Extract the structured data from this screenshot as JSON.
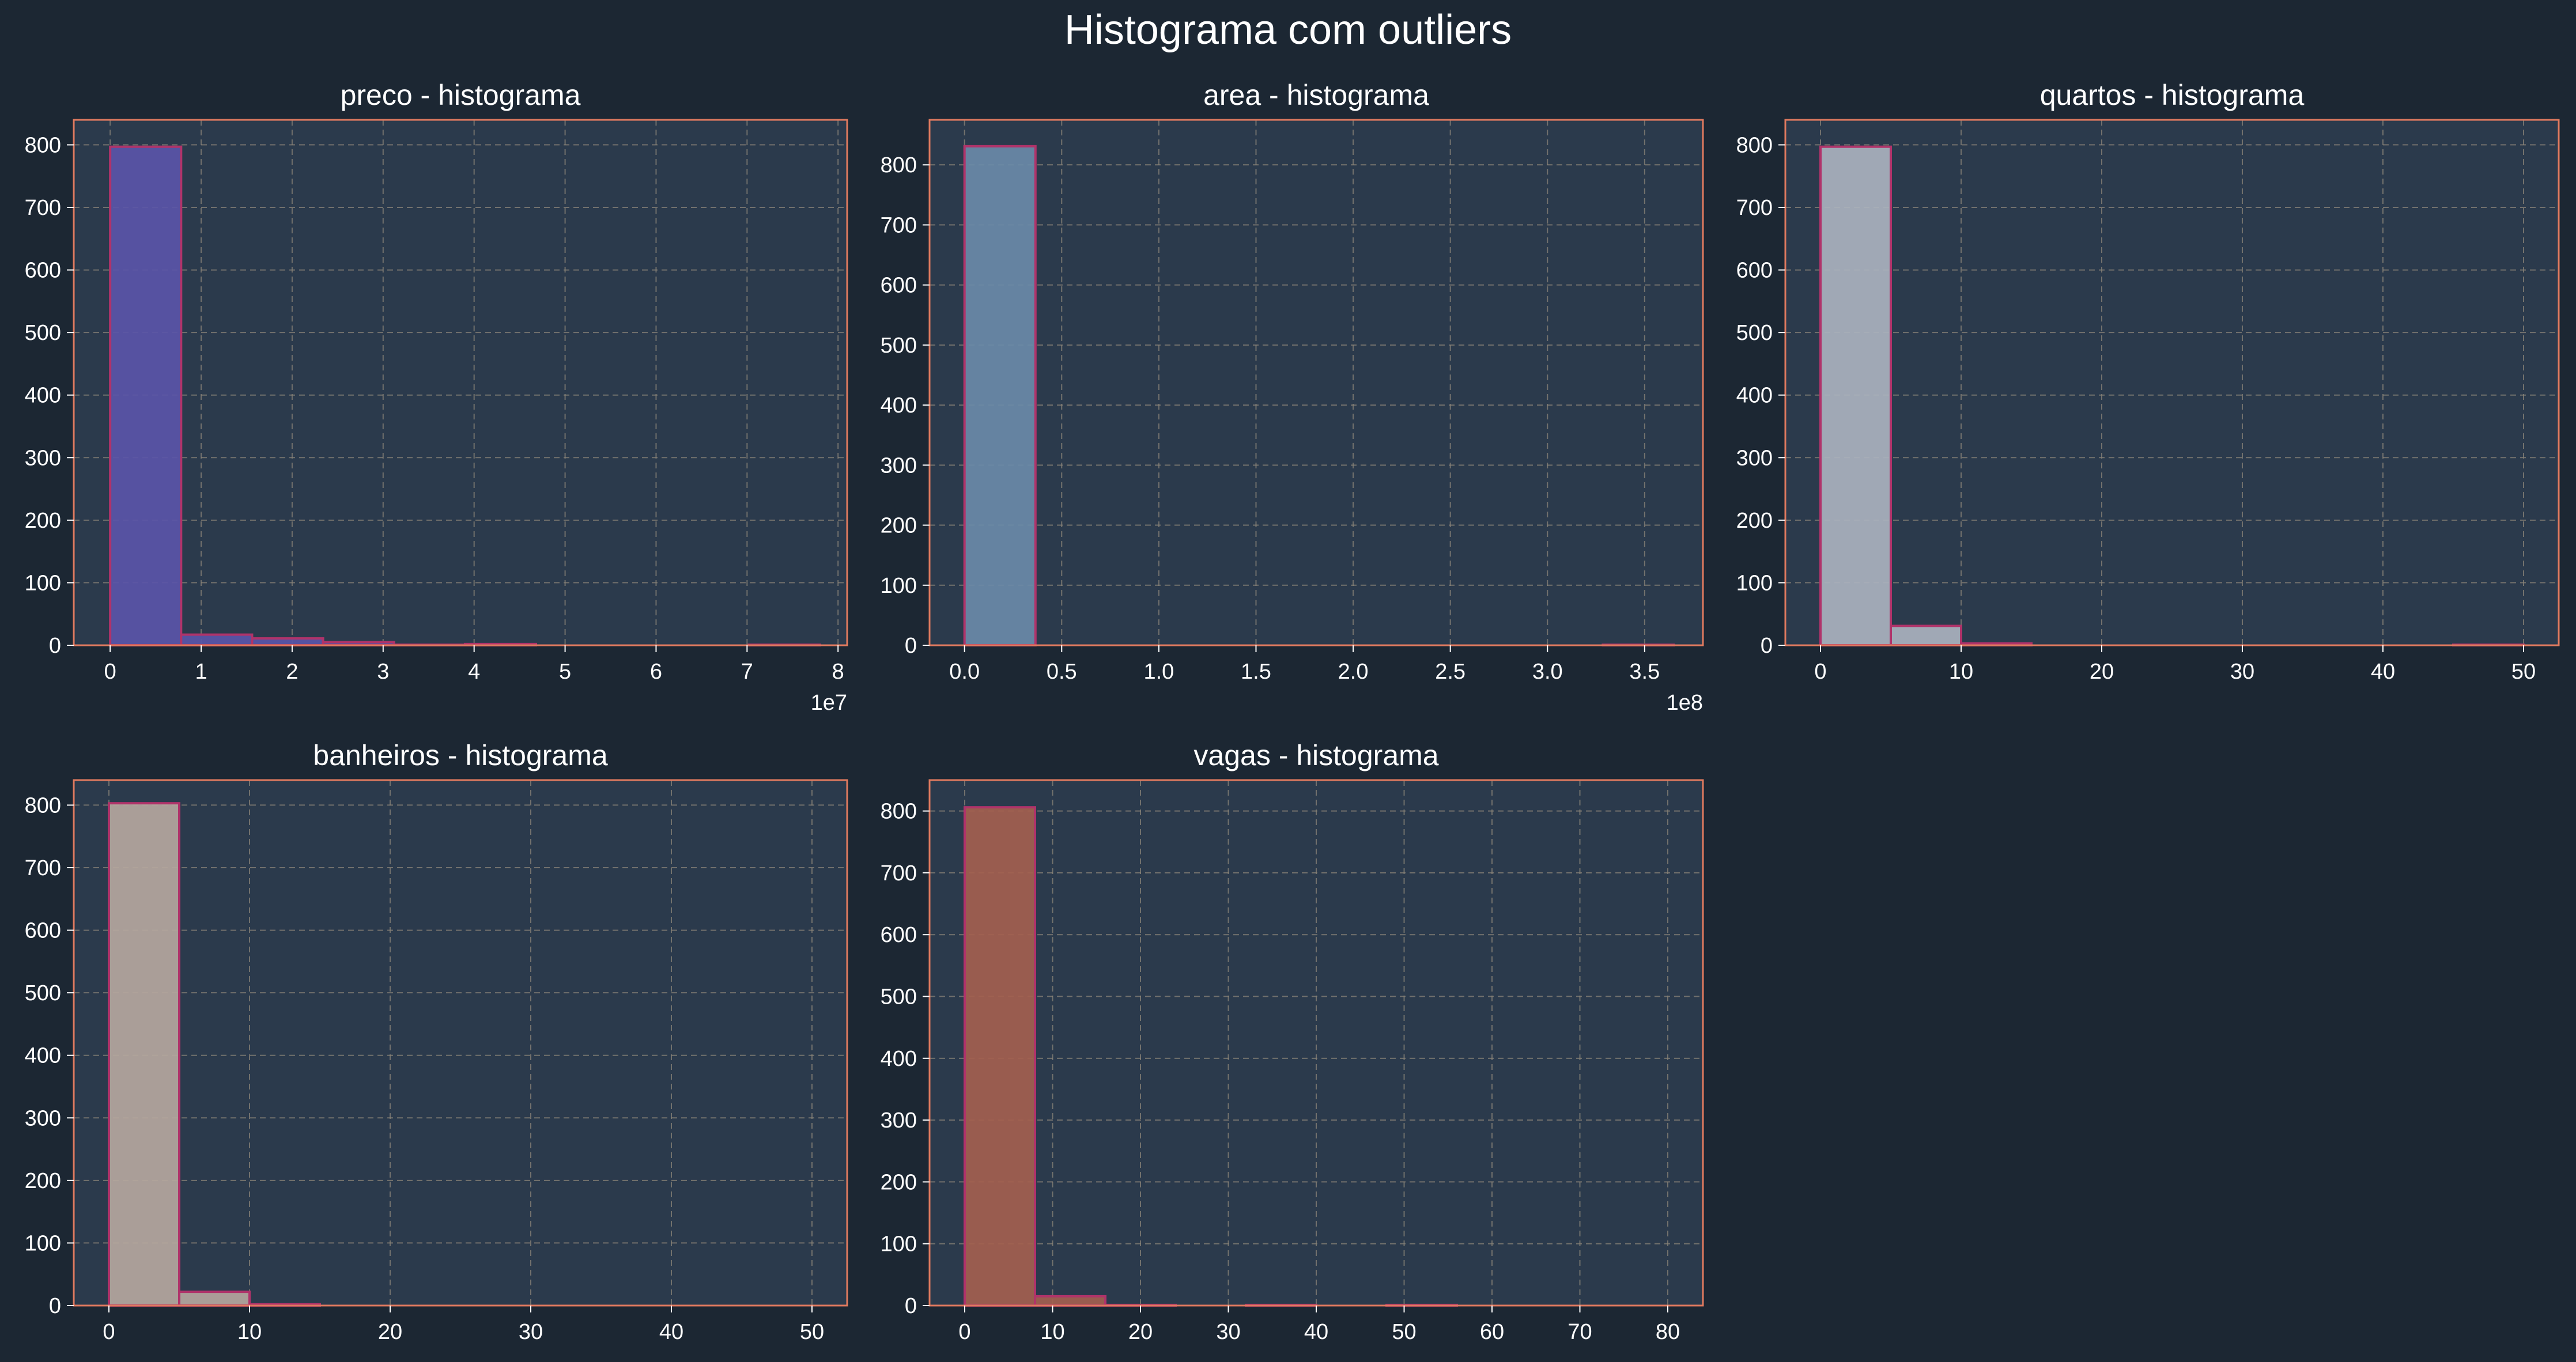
{
  "figure": {
    "title": "Histograma com outliers",
    "colors": {
      "background": "#1c2733",
      "axes_face": "#2b3a4c",
      "spine": "#e07a5f",
      "grid": "#8a8478",
      "text": "#ffffff",
      "bar_edge": "#b0336a"
    }
  },
  "chart_data": [
    {
      "type": "bar",
      "title": "preco - histograma",
      "xlabel": "",
      "ylabel": "",
      "x_offset_label": "1e7",
      "xlim": [
        -0.4,
        8.1
      ],
      "ylim": [
        0,
        840
      ],
      "xticks": [
        0,
        1,
        2,
        3,
        4,
        5,
        6,
        7,
        8
      ],
      "xtick_labels": [
        "0",
        "1",
        "2",
        "3",
        "4",
        "5",
        "6",
        "7",
        "8"
      ],
      "yticks": [
        0,
        100,
        200,
        300,
        400,
        500,
        600,
        700,
        800
      ],
      "ytick_labels": [
        "0",
        "100",
        "200",
        "300",
        "400",
        "500",
        "600",
        "700",
        "800"
      ],
      "grid": true,
      "color": "#5a55a8",
      "bin_edges": [
        0,
        0.78,
        1.56,
        2.34,
        3.12,
        3.9,
        4.68,
        5.46,
        6.24,
        7.02,
        7.8
      ],
      "values": [
        797,
        17,
        11,
        5,
        1,
        2,
        0,
        0,
        0,
        1
      ]
    },
    {
      "type": "bar",
      "title": "area - histograma",
      "xlabel": "",
      "ylabel": "",
      "x_offset_label": "1e8",
      "xlim": [
        -0.18,
        3.8
      ],
      "ylim": [
        0,
        875
      ],
      "xticks": [
        0,
        0.5,
        1,
        1.5,
        2,
        2.5,
        3,
        3.5
      ],
      "xtick_labels": [
        "0.0",
        "0.5",
        "1.0",
        "1.5",
        "2.0",
        "2.5",
        "3.0",
        "3.5"
      ],
      "yticks": [
        0,
        100,
        200,
        300,
        400,
        500,
        600,
        700,
        800
      ],
      "ytick_labels": [
        "0",
        "100",
        "200",
        "300",
        "400",
        "500",
        "600",
        "700",
        "800"
      ],
      "grid": true,
      "color": "#6a8aa8",
      "bin_edges": [
        0,
        0.365,
        0.73,
        1.095,
        1.46,
        1.825,
        2.19,
        2.555,
        2.92,
        3.285,
        3.65
      ],
      "values": [
        831,
        0,
        0,
        0,
        0,
        0,
        0,
        0,
        0,
        1
      ]
    },
    {
      "type": "bar",
      "title": "quartos - histograma",
      "xlabel": "",
      "ylabel": "",
      "x_offset_label": "",
      "xlim": [
        -2.5,
        52.5
      ],
      "ylim": [
        0,
        840
      ],
      "xticks": [
        0,
        10,
        20,
        30,
        40,
        50
      ],
      "xtick_labels": [
        "0",
        "10",
        "20",
        "30",
        "40",
        "50"
      ],
      "yticks": [
        0,
        100,
        200,
        300,
        400,
        500,
        600,
        700,
        800
      ],
      "ytick_labels": [
        "0",
        "100",
        "200",
        "300",
        "400",
        "500",
        "600",
        "700",
        "800"
      ],
      "grid": true,
      "color": "#aab2be",
      "bin_edges": [
        0,
        5,
        10,
        15,
        20,
        25,
        30,
        35,
        40,
        45,
        50
      ],
      "values": [
        797,
        31,
        3,
        0,
        0,
        0,
        0,
        0,
        0,
        1
      ]
    },
    {
      "type": "bar",
      "title": "banheiros - histograma",
      "xlabel": "",
      "ylabel": "",
      "x_offset_label": "",
      "xlim": [
        -2.5,
        52.5
      ],
      "ylim": [
        0,
        840
      ],
      "xticks": [
        0,
        10,
        20,
        30,
        40,
        50
      ],
      "xtick_labels": [
        "0",
        "10",
        "20",
        "30",
        "40",
        "50"
      ],
      "yticks": [
        0,
        100,
        200,
        300,
        400,
        500,
        600,
        700,
        800
      ],
      "ytick_labels": [
        "0",
        "100",
        "200",
        "300",
        "400",
        "500",
        "600",
        "700",
        "800"
      ],
      "grid": true,
      "color": "#b5a79e",
      "bin_edges": [
        0,
        5,
        10,
        15,
        20,
        25,
        30,
        35,
        40,
        45,
        50
      ],
      "values": [
        803,
        22,
        2,
        0,
        0,
        0,
        0,
        0,
        0,
        0
      ]
    },
    {
      "type": "bar",
      "title": "vagas - histograma",
      "xlabel": "",
      "ylabel": "",
      "x_offset_label": "",
      "xlim": [
        -4,
        84
      ],
      "ylim": [
        0,
        850
      ],
      "xticks": [
        0,
        10,
        20,
        30,
        40,
        50,
        60,
        70,
        80
      ],
      "xtick_labels": [
        "0",
        "10",
        "20",
        "30",
        "40",
        "50",
        "60",
        "70",
        "80"
      ],
      "yticks": [
        0,
        100,
        200,
        300,
        400,
        500,
        600,
        700,
        800
      ],
      "ytick_labels": [
        "0",
        "100",
        "200",
        "300",
        "400",
        "500",
        "600",
        "700",
        "800"
      ],
      "grid": true,
      "color": "#a3604f",
      "bin_edges": [
        0,
        8,
        16,
        24,
        32,
        40,
        48,
        56,
        64,
        72,
        80
      ],
      "values": [
        806,
        15,
        1,
        0,
        1,
        0,
        1,
        0,
        0,
        0
      ]
    }
  ]
}
